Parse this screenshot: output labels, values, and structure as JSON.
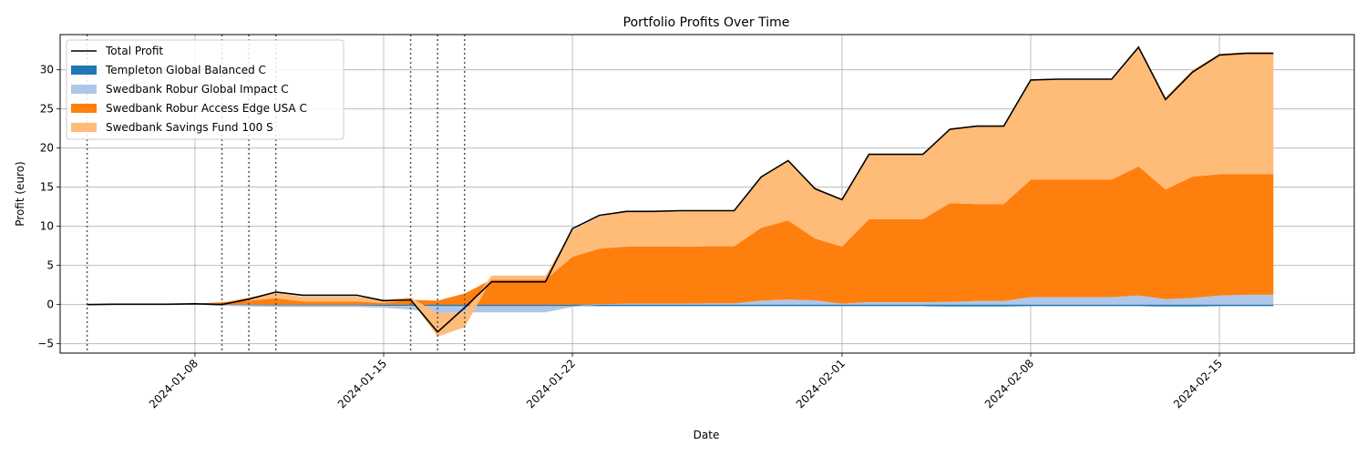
{
  "chart_data": {
    "type": "area",
    "title": "Portfolio Profits Over Time",
    "xlabel": "Date",
    "ylabel": "Profit (euro)",
    "ylim": [
      -6.2,
      34.5
    ],
    "xlim": [
      "2024-01-03",
      "2024-02-20"
    ],
    "yticks": [
      -5,
      0,
      5,
      10,
      15,
      20,
      25,
      30
    ],
    "xticks": [
      "2024-01-08",
      "2024-01-15",
      "2024-01-22",
      "2024-02-01",
      "2024-02-08",
      "2024-02-15"
    ],
    "grid": true,
    "legend_position": "top-left",
    "vlines": [
      "2024-01-04",
      "2024-01-09",
      "2024-01-10",
      "2024-01-11",
      "2024-01-16",
      "2024-01-17",
      "2024-01-18"
    ],
    "x": [
      "2024-01-04",
      "2024-01-05",
      "2024-01-06",
      "2024-01-07",
      "2024-01-08",
      "2024-01-09",
      "2024-01-10",
      "2024-01-11",
      "2024-01-12",
      "2024-01-13",
      "2024-01-14",
      "2024-01-15",
      "2024-01-16",
      "2024-01-17",
      "2024-01-18",
      "2024-01-19",
      "2024-01-20",
      "2024-01-21",
      "2024-01-22",
      "2024-01-23",
      "2024-01-24",
      "2024-01-25",
      "2024-01-26",
      "2024-01-27",
      "2024-01-28",
      "2024-01-29",
      "2024-01-30",
      "2024-01-31",
      "2024-02-01",
      "2024-02-02",
      "2024-02-03",
      "2024-02-04",
      "2024-02-05",
      "2024-02-06",
      "2024-02-07",
      "2024-02-08",
      "2024-02-09",
      "2024-02-10",
      "2024-02-11",
      "2024-02-12",
      "2024-02-13",
      "2024-02-14",
      "2024-02-15",
      "2024-02-16",
      "2024-02-17"
    ],
    "series": [
      {
        "name": "Templeton Global Balanced C",
        "color": "#1f77b4",
        "values": [
          0,
          0,
          0,
          0,
          0,
          -0.05,
          -0.08,
          -0.1,
          -0.12,
          -0.12,
          -0.12,
          -0.15,
          -0.15,
          -0.2,
          -0.2,
          -0.2,
          -0.2,
          -0.2,
          -0.2,
          -0.2,
          -0.2,
          -0.2,
          -0.2,
          -0.2,
          -0.2,
          -0.2,
          -0.2,
          -0.2,
          -0.2,
          -0.2,
          -0.2,
          -0.2,
          -0.25,
          -0.25,
          -0.25,
          -0.2,
          -0.2,
          -0.2,
          -0.2,
          -0.2,
          -0.25,
          -0.25,
          -0.2,
          -0.2,
          -0.2
        ]
      },
      {
        "name": "Swedbank Robur Global Impact C",
        "color": "#aec7e8",
        "values": [
          0,
          0,
          0,
          0,
          0,
          -0.1,
          -0.15,
          -0.2,
          -0.2,
          -0.2,
          -0.2,
          -0.25,
          -0.5,
          -0.9,
          -0.8,
          -0.8,
          -0.8,
          -0.8,
          -0.1,
          0.05,
          0.1,
          0.1,
          0.1,
          0.15,
          0.15,
          0.5,
          0.65,
          0.55,
          0.1,
          0.3,
          0.3,
          0.3,
          0.35,
          0.45,
          0.45,
          0.95,
          0.95,
          0.95,
          0.95,
          1.15,
          0.7,
          0.85,
          1.15,
          1.25,
          1.25
        ]
      },
      {
        "name": "Swedbank Robur Access Edge USA C",
        "color": "#ff7f0e",
        "values": [
          0,
          0,
          0,
          0,
          0.1,
          0.3,
          0.5,
          0.8,
          0.4,
          0.4,
          0.4,
          0.2,
          0.6,
          0.5,
          1.4,
          3.2,
          3.2,
          3.2,
          6.1,
          7.1,
          7.3,
          7.3,
          7.3,
          7.3,
          7.3,
          9.3,
          10.1,
          7.9,
          7.3,
          10.6,
          10.6,
          10.6,
          12.6,
          12.4,
          12.4,
          15.0,
          15.0,
          15.0,
          15.0,
          16.5,
          14.0,
          15.5,
          15.5,
          15.4,
          15.4
        ]
      },
      {
        "name": "Swedbank Savings Fund 100 S",
        "color": "#ffbb78",
        "values": [
          0,
          0,
          0,
          0,
          0,
          0,
          0.4,
          0.7,
          0.6,
          0.6,
          0.6,
          0.4,
          0.3,
          -3.0,
          -1.9,
          0.5,
          0.5,
          0.5,
          3.4,
          4.1,
          4.5,
          4.5,
          4.6,
          4.6,
          4.6,
          6.5,
          7.7,
          6.5,
          6.0,
          8.3,
          8.3,
          8.3,
          9.6,
          10.0,
          10.0,
          12.8,
          12.8,
          12.8,
          12.8,
          15.4,
          11.8,
          13.6,
          15.4,
          15.6,
          15.6
        ]
      }
    ],
    "total": {
      "name": "Total Profit",
      "color": "#000000",
      "values": [
        0,
        0.05,
        0.05,
        0.05,
        0.1,
        0,
        0.7,
        1.6,
        1.2,
        1.2,
        1.2,
        0.5,
        0.6,
        -3.5,
        -0.4,
        2.9,
        2.9,
        2.9,
        9.7,
        11.4,
        11.9,
        11.9,
        12,
        12,
        12,
        16.3,
        18.4,
        14.8,
        13.4,
        19.2,
        19.2,
        19.2,
        22.4,
        22.8,
        22.8,
        28.7,
        28.8,
        28.8,
        28.8,
        32.9,
        26.2,
        29.7,
        31.9,
        32.1,
        32.1
      ]
    }
  }
}
